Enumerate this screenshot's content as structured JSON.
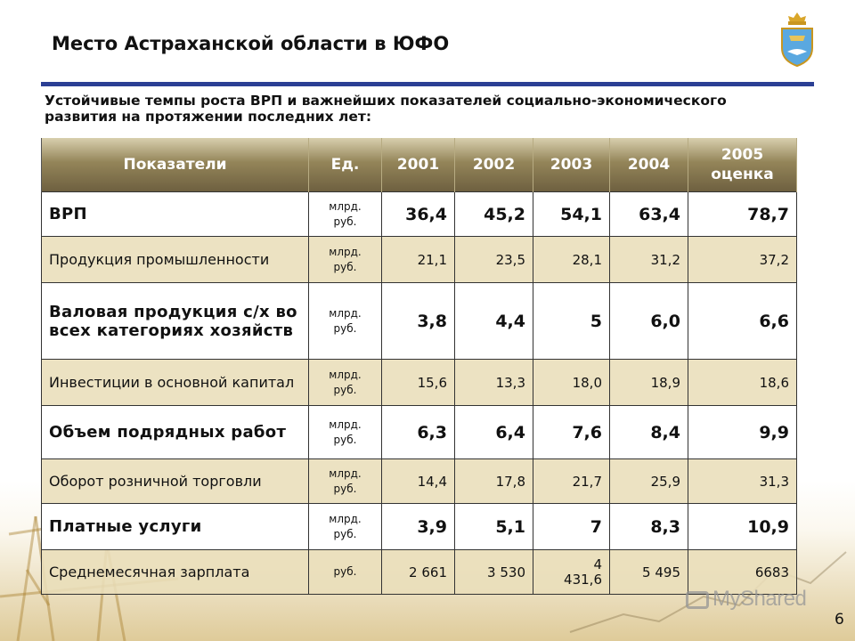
{
  "slide": {
    "title": "Место Астраханской области в ЮФО",
    "subtitle": "Устойчивые темпы роста ВРП и важнейших показателей социально-экономического развития на протяжении последних лет:",
    "page_number": "6",
    "watermark": "MyShared",
    "accent_color": "#2b3f94"
  },
  "table": {
    "headers": [
      "Показатели",
      "Ед.",
      "2001",
      "2002",
      "2003",
      "2004",
      "2005 оценка"
    ],
    "rows": [
      {
        "name": "ВРП",
        "unit": "млрд. руб.",
        "values": [
          "36,4",
          "45,2",
          "54,1",
          "63,4",
          "78,7"
        ],
        "style": "bold"
      },
      {
        "name": "Продукция промышленности",
        "unit": "млрд. руб.",
        "values": [
          "21,1",
          "23,5",
          "28,1",
          "31,2",
          "37,2"
        ],
        "style": "light"
      },
      {
        "name": "Валовая продукция с/х во всех категориях хозяйств",
        "unit": "млрд. руб.",
        "values": [
          "3,8",
          "4,4",
          "5",
          "6,0",
          "6,6"
        ],
        "style": "bold"
      },
      {
        "name": "Инвестиции в основной капитал",
        "unit": "млрд. руб.",
        "values": [
          "15,6",
          "13,3",
          "18,0",
          "18,9",
          "18,6"
        ],
        "style": "light"
      },
      {
        "name": "Объем подрядных работ",
        "unit": "млрд. руб.",
        "values": [
          "6,3",
          "6,4",
          "7,6",
          "8,4",
          "9,9"
        ],
        "style": "bold"
      },
      {
        "name": "Оборот розничной торговли",
        "unit": "млрд. руб.",
        "values": [
          "14,4",
          "17,8",
          "21,7",
          "25,9",
          "31,3"
        ],
        "style": "light"
      },
      {
        "name": "Платные услуги",
        "unit": "млрд. руб.",
        "values": [
          "3,9",
          "5,1",
          "7",
          "8,3",
          "10,9"
        ],
        "style": "bold"
      },
      {
        "name": "Среднемесячная зарплата",
        "unit": "руб.",
        "values": [
          "2 661",
          "3 530",
          "4 431,6",
          "5 495",
          "6683"
        ],
        "style": "light"
      }
    ]
  }
}
